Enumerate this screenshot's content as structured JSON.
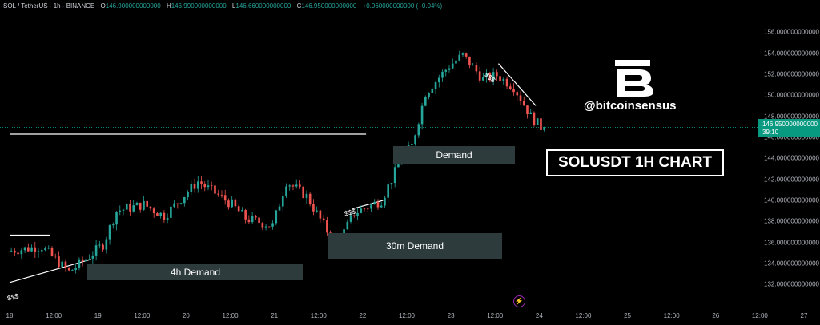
{
  "header": {
    "symbol": "SOL / TetherUS - 1h - BINANCE",
    "o_label": "O",
    "o": "146.900000000000",
    "h_label": "H",
    "h": "146.990000000000",
    "l_label": "L",
    "l": "146.660000000000",
    "c_label": "C",
    "c": "146.950000000000",
    "change": "+0.060000000000 (+0.04%)"
  },
  "price_tag": {
    "price": "146.950000000000",
    "countdown": "39:10"
  },
  "annotations": {
    "handle": "@bitcoinsensus",
    "title": "SOLUSDT 1H CHART",
    "zones": [
      "4h Demand",
      "30m Demand",
      "Demand"
    ],
    "liquidity_label": "$$$"
  },
  "colors": {
    "background": "#000000",
    "up": "#26a69a",
    "down": "#ef5350",
    "zone": "#2d3b3d",
    "price_tag": "#089981"
  },
  "icons": [
    "brand-b-logo-icon",
    "lightning-icon"
  ],
  "chart_data": {
    "type": "candlestick",
    "symbol": "SOL / TetherUS",
    "interval": "1h",
    "exchange": "BINANCE",
    "ylim": [
      131.5,
      157
    ],
    "y_ticks": [
      "156.000000000000",
      "154.000000000000",
      "152.000000000000",
      "150.000000000000",
      "148.000000000000",
      "146.000000000000",
      "144.000000000000",
      "142.000000000000",
      "140.000000000000",
      "138.000000000000",
      "136.000000000000",
      "134.000000000000",
      "132.000000000000"
    ],
    "x_ticks": [
      "18",
      "12:00",
      "19",
      "12:00",
      "20",
      "12:00",
      "21",
      "12:00",
      "22",
      "12:00",
      "23",
      "12:00",
      "24",
      "12:00",
      "25",
      "12:00",
      "26",
      "12:00",
      "27"
    ],
    "x_range": [
      "Jun 18 00:00",
      "Jun 27 18:00"
    ],
    "candles_range": [
      "Jun 18 00:00",
      "Jun 24 13:00"
    ],
    "close_path": [
      [
        "Jun 18 00:00",
        135.2
      ],
      [
        "Jun 18 10:00",
        135.6
      ],
      [
        "Jun 18 18:00",
        133.2
      ],
      [
        "Jun 18 22:00",
        134.2
      ],
      [
        "Jun 19 04:00",
        135.8
      ],
      [
        "Jun 19 08:00",
        139.0
      ],
      [
        "Jun 19 16:00",
        139.6
      ],
      [
        "Jun 19 22:00",
        138.5
      ],
      [
        "Jun 20 04:00",
        140.5
      ],
      [
        "Jun 20 08:00",
        141.8
      ],
      [
        "Jun 20 18:00",
        139.6
      ],
      [
        "Jun 20 22:00",
        138.3
      ],
      [
        "Jun 21 06:00",
        137.6
      ],
      [
        "Jun 21 10:00",
        141.8
      ],
      [
        "Jun 21 16:00",
        140.4
      ],
      [
        "Jun 21 22:00",
        137.1
      ],
      [
        "Jun 22 01:00",
        135.8
      ],
      [
        "Jun 22 06:00",
        138.8
      ],
      [
        "Jun 22 14:00",
        140.0
      ],
      [
        "Jun 22 20:00",
        144.0
      ],
      [
        "Jun 22 23:00",
        145.2
      ],
      [
        "Jun 23 03:00",
        150.2
      ],
      [
        "Jun 23 10:00",
        152.8
      ],
      [
        "Jun 23 14:00",
        153.8
      ],
      [
        "Jun 23 20:00",
        151.5
      ],
      [
        "Jun 24 00:00",
        151.9
      ],
      [
        "Jun 24 05:00",
        150.8
      ],
      [
        "Jun 24 10:00",
        148.0
      ],
      [
        "Jun 24 13:00",
        146.95
      ]
    ],
    "current_price": 146.95,
    "resistance_level": 146.3,
    "resistance_span": [
      "Jun 18 00:00",
      "Jun 22 09:00"
    ],
    "left_level": 136.7,
    "left_level_span": [
      "Jun 18 00:00",
      "Jun 18 12:00"
    ],
    "zones": [
      {
        "label": "4h Demand",
        "from": "Jun 19 00:00",
        "to": "Jun 21 21:00",
        "low": 133.9,
        "high": 134.8
      },
      {
        "label": "30m Demand",
        "from": "Jun 22 01:00",
        "to": "Jun 24 10:00",
        "low": 135.4,
        "high": 137.1
      },
      {
        "label": "Demand",
        "from": "Jun 22 23:00",
        "to": "Jun 24 12:00",
        "low": 143.6,
        "high": 145.6
      }
    ],
    "liquidity_lines": [
      {
        "label": "$$$",
        "from": [
          "Jun 18 00:00",
          132.2
        ],
        "to": [
          "Jun 19 00:00",
          134.4
        ]
      },
      {
        "label": "$$$",
        "from": [
          "Jun 22 05:00",
          139.2
        ],
        "to": [
          "Jun 22 14:00",
          140.0
        ]
      },
      {
        "label": "$$$",
        "from": [
          "Jun 24 00:00",
          153.0
        ],
        "to": [
          "Jun 24 11:00",
          149.0
        ]
      }
    ]
  }
}
